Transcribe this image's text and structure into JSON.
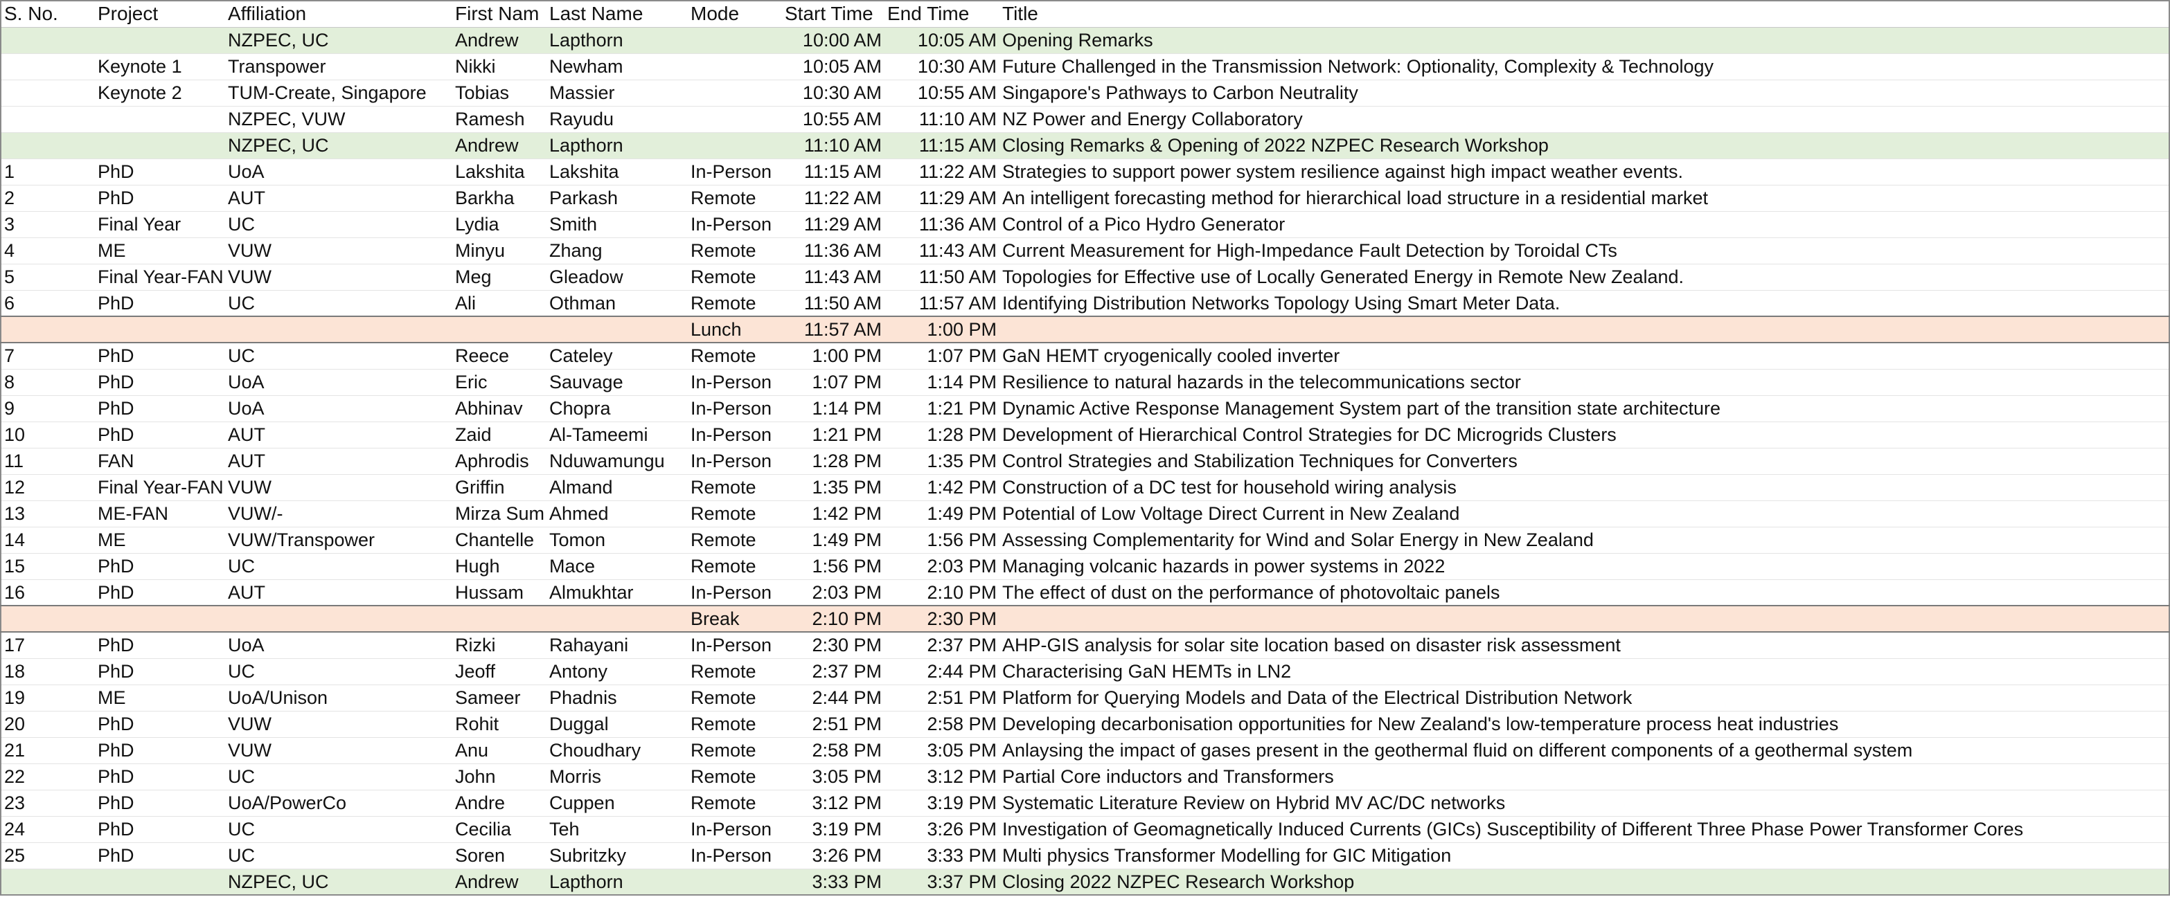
{
  "table": {
    "header": [
      "S. No.",
      "Project",
      "Affiliation",
      "First Nam",
      "Last Name",
      "Mode",
      "Start Time",
      "End Time",
      "Title"
    ],
    "rows": [
      {
        "cells": [
          null,
          null,
          "NZPEC, UC",
          "Andrew",
          "Lapthorn",
          null,
          "10:00 AM",
          "10:05 AM",
          "Opening Remarks"
        ],
        "fill": "#e2efda"
      },
      {
        "cells": [
          null,
          "Keynote 1",
          "Transpower",
          "Nikki",
          "Newham",
          null,
          "10:05 AM",
          "10:30 AM",
          "Future Challenged in the Transmission Network: Optionality, Complexity & Technology"
        ]
      },
      {
        "cells": [
          null,
          "Keynote 2",
          "TUM-Create, Singapore",
          "Tobias",
          "Massier",
          null,
          "10:30 AM",
          "10:55 AM",
          "Singapore's Pathways to Carbon Neutrality"
        ]
      },
      {
        "cells": [
          null,
          null,
          "NZPEC, VUW",
          "Ramesh",
          "Rayudu",
          null,
          "10:55 AM",
          "11:10 AM",
          "NZ Power and Energy Collaboratory"
        ]
      },
      {
        "cells": [
          null,
          null,
          "NZPEC, UC",
          "Andrew",
          "Lapthorn",
          null,
          "11:10 AM",
          "11:15 AM",
          "Closing Remarks & Opening of 2022 NZPEC Research Workshop"
        ],
        "fill": "#e2efda"
      },
      {
        "cells": [
          "1",
          "PhD",
          "UoA",
          "Lakshita",
          "Lakshita",
          "In-Person",
          "11:15 AM",
          "11:22 AM",
          "Strategies to support power system resilience against high impact weather events."
        ]
      },
      {
        "cells": [
          "2",
          "PhD",
          "AUT",
          "Barkha",
          "Parkash",
          "Remote",
          "11:22 AM",
          "11:29 AM",
          "An intelligent forecasting method for hierarchical load structure in a residential market"
        ]
      },
      {
        "cells": [
          "3",
          "Final Year",
          "UC",
          "Lydia",
          "Smith",
          "In-Person",
          "11:29 AM",
          "11:36 AM",
          "Control of a Pico Hydro Generator"
        ]
      },
      {
        "cells": [
          "4",
          "ME",
          "VUW",
          "Minyu",
          "Zhang",
          "Remote",
          "11:36 AM",
          "11:43 AM",
          "Current Measurement for High-Impedance Fault Detection by Toroidal CTs"
        ]
      },
      {
        "cells": [
          "5",
          "Final Year-FAN",
          "VUW",
          "Meg",
          "Gleadow",
          "Remote",
          "11:43 AM",
          "11:50 AM",
          "Topologies for Effective use of Locally Generated Energy in Remote New Zealand."
        ]
      },
      {
        "cells": [
          "6",
          "PhD",
          "UC",
          "Ali",
          "Othman",
          "Remote",
          "11:50 AM",
          "11:57 AM",
          "Identifying Distribution Networks Topology Using Smart Meter Data."
        ]
      },
      {
        "cells": [
          null,
          null,
          null,
          null,
          null,
          "Lunch",
          "11:57 AM",
          "1:00 PM",
          null
        ],
        "fill": "#fce4d6"
      },
      {
        "cells": [
          "7",
          "PhD",
          "UC",
          "Reece",
          "Cateley",
          "Remote",
          "1:00 PM",
          "1:07 PM",
          "GaN HEMT cryogenically cooled inverter"
        ]
      },
      {
        "cells": [
          "8",
          "PhD",
          "UoA",
          "Eric",
          "Sauvage",
          "In-Person",
          "1:07 PM",
          "1:14 PM",
          "Resilience to natural hazards in the telecommunications sector"
        ]
      },
      {
        "cells": [
          "9",
          "PhD",
          "UoA",
          "Abhinav",
          "Chopra",
          "In-Person",
          "1:14 PM",
          "1:21 PM",
          "Dynamic Active Response Management System part of the transition state architecture"
        ]
      },
      {
        "cells": [
          "10",
          "PhD",
          "AUT",
          "Zaid",
          "Al-Tameemi",
          "In-Person",
          "1:21 PM",
          "1:28 PM",
          "Development of Hierarchical Control Strategies for DC Microgrids Clusters"
        ]
      },
      {
        "cells": [
          "11",
          "FAN",
          "AUT",
          "Aphrodis",
          "Nduwamungu",
          "In-Person",
          "1:28 PM",
          "1:35 PM",
          "Control Strategies and Stabilization Techniques for Converters"
        ]
      },
      {
        "cells": [
          "12",
          "Final Year-FAN",
          "VUW",
          "Griffin",
          "Almand",
          "Remote",
          "1:35 PM",
          "1:42 PM",
          "Construction of a DC test for household wiring analysis"
        ]
      },
      {
        "cells": [
          "13",
          "ME-FAN",
          "VUW/-",
          "Mirza Sum",
          "Ahmed",
          "Remote",
          "1:42 PM",
          "1:49 PM",
          "Potential of Low Voltage Direct Current in New Zealand"
        ]
      },
      {
        "cells": [
          "14",
          "ME",
          "VUW/Transpower",
          "Chantelle",
          "Tomon",
          "Remote",
          "1:49 PM",
          "1:56 PM",
          "Assessing Complementarity for Wind and Solar Energy in New Zealand"
        ]
      },
      {
        "cells": [
          "15",
          "PhD",
          "UC",
          "Hugh",
          "Mace",
          "Remote",
          "1:56 PM",
          "2:03 PM",
          "Managing volcanic hazards in power systems in 2022"
        ]
      },
      {
        "cells": [
          "16",
          "PhD",
          "AUT",
          "Hussam",
          "Almukhtar",
          "In-Person",
          "2:03 PM",
          "2:10 PM",
          "The effect of dust on the performance of photovoltaic panels"
        ]
      },
      {
        "cells": [
          null,
          null,
          null,
          null,
          null,
          "Break",
          "2:10 PM",
          "2:30 PM",
          null
        ],
        "fill": "#fce4d6"
      },
      {
        "cells": [
          "17",
          "PhD",
          "UoA",
          "Rizki",
          "Rahayani",
          "In-Person",
          "2:30 PM",
          "2:37 PM",
          "AHP-GIS analysis for solar site location based on disaster risk assessment"
        ]
      },
      {
        "cells": [
          "18",
          "PhD",
          "UC",
          "Jeoff",
          "Antony",
          "Remote",
          "2:37 PM",
          "2:44 PM",
          "Characterising GaN HEMTs in LN2"
        ]
      },
      {
        "cells": [
          "19",
          "ME",
          "UoA/Unison",
          "Sameer",
          "Phadnis",
          "Remote",
          "2:44 PM",
          "2:51 PM",
          "Platform for Querying Models and Data of the Electrical Distribution Network"
        ]
      },
      {
        "cells": [
          "20",
          "PhD",
          "VUW",
          "Rohit",
          "Duggal",
          "Remote",
          "2:51 PM",
          "2:58 PM",
          "Developing decarbonisation opportunities for New Zealand's low-temperature process heat industries"
        ]
      },
      {
        "cells": [
          "21",
          "PhD",
          "VUW",
          "Anu",
          "Choudhary",
          "Remote",
          "2:58 PM",
          "3:05 PM",
          "Anlaysing the impact of gases present in the geothermal fluid on different components of a geothermal system"
        ]
      },
      {
        "cells": [
          "22",
          "PhD",
          "UC",
          "John",
          "Morris",
          "Remote",
          "3:05 PM",
          "3:12 PM",
          "Partial Core inductors and Transformers"
        ]
      },
      {
        "cells": [
          "23",
          "PhD",
          "UoA/PowerCo",
          "Andre",
          "Cuppen",
          "Remote",
          "3:12 PM",
          "3:19 PM",
          "Systematic Literature Review on Hybrid MV AC/DC networks"
        ]
      },
      {
        "cells": [
          "24",
          "PhD",
          "UC",
          "Cecilia",
          "Teh",
          "In-Person",
          "3:19 PM",
          "3:26 PM",
          "Investigation of Geomagnetically Induced Currents (GICs) Susceptibility of Different Three Phase Power Transformer Cores"
        ]
      },
      {
        "cells": [
          "25",
          "PhD",
          "UC",
          "Soren",
          "Subritzky",
          "In-Person",
          "3:26 PM",
          "3:33 PM",
          "Multi physics Transformer Modelling for GIC Mitigation"
        ]
      },
      {
        "cells": [
          null,
          null,
          "NZPEC, UC",
          "Andrew",
          "Lapthorn",
          null,
          "3:33 PM",
          "3:37 PM",
          "Closing 2022 NZPEC Research Workshop"
        ],
        "fill": "#e2efda"
      }
    ]
  }
}
